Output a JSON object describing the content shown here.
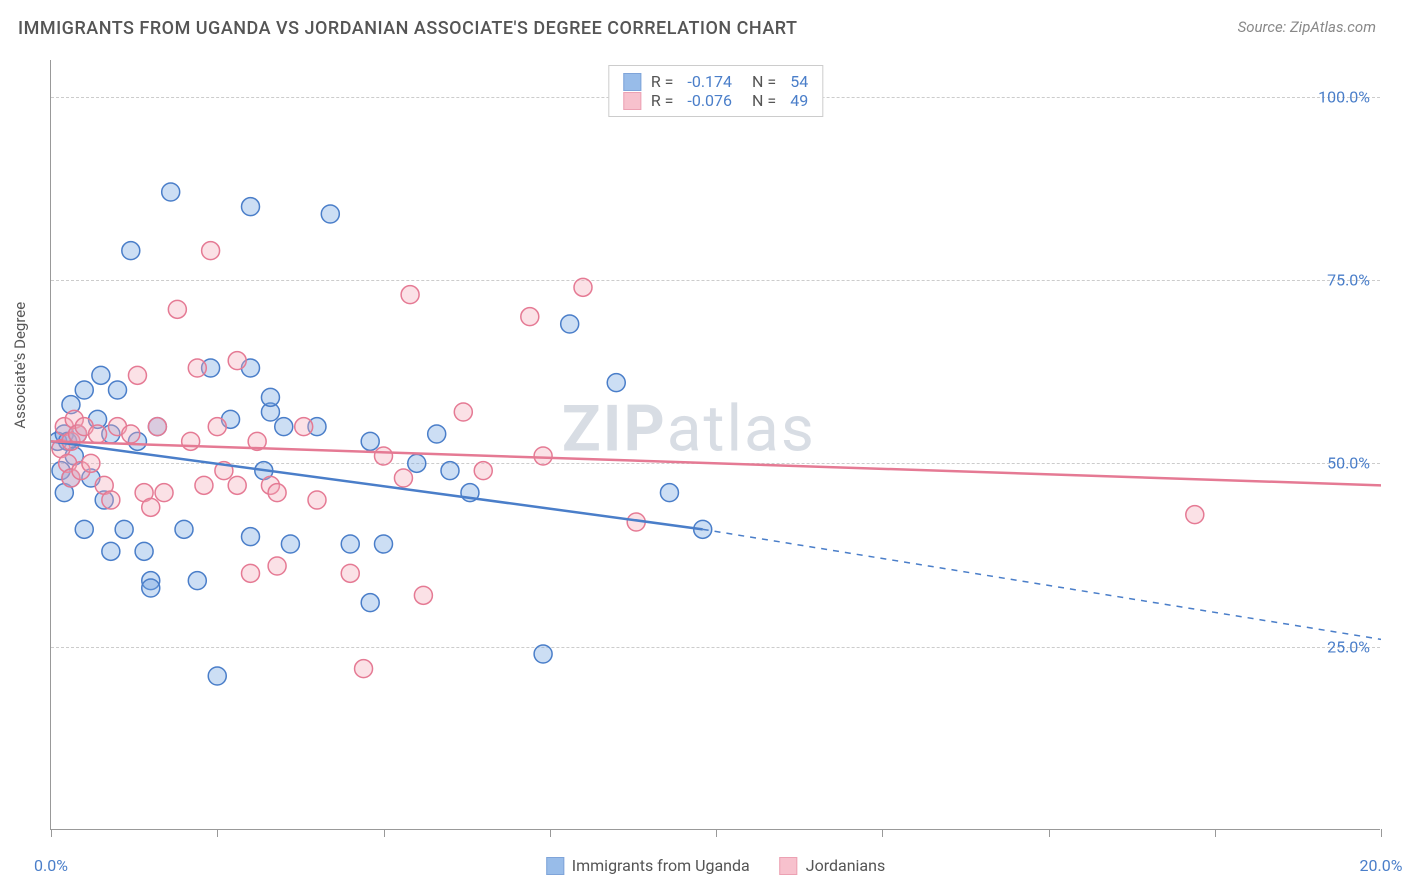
{
  "title": "IMMIGRANTS FROM UGANDA VS JORDANIAN ASSOCIATE'S DEGREE CORRELATION CHART",
  "source": "Source: ZipAtlas.com",
  "watermark_bold": "ZIP",
  "watermark_light": "atlas",
  "chart": {
    "type": "scatter",
    "y_label": "Associate's Degree",
    "xlim": [
      0,
      20
    ],
    "ylim": [
      0,
      105
    ],
    "x_ticks": [
      0,
      2.5,
      5.0,
      7.5,
      10,
      12.5,
      15,
      17.5,
      20
    ],
    "x_tick_labels": {
      "0": "0.0%",
      "20": "20.0%"
    },
    "y_ticks": [
      25,
      50,
      75,
      100
    ],
    "y_tick_labels": {
      "25": "25.0%",
      "50": "50.0%",
      "75": "75.0%",
      "100": "100.0%"
    },
    "background_color": "#ffffff",
    "grid_color": "#cccccc",
    "axis_color": "#999999",
    "tick_label_color": "#4a7ec9",
    "marker_radius": 9,
    "marker_fill_opacity": 0.35,
    "series": [
      {
        "name": "Immigrants from Uganda",
        "color": "#6da0e0",
        "stroke": "#4a7ec9",
        "r_value": "-0.174",
        "n_value": "54",
        "trend": {
          "x1": 0,
          "y1": 53,
          "x2": 9.8,
          "y2": 41,
          "dash_x2": 20,
          "dash_y2": 26
        },
        "points": [
          [
            0.1,
            53
          ],
          [
            0.15,
            49
          ],
          [
            0.2,
            54
          ],
          [
            0.2,
            46
          ],
          [
            0.25,
            53
          ],
          [
            0.3,
            48
          ],
          [
            0.3,
            58
          ],
          [
            0.35,
            51
          ],
          [
            0.4,
            54
          ],
          [
            0.5,
            60
          ],
          [
            0.5,
            41
          ],
          [
            0.6,
            48
          ],
          [
            0.7,
            56
          ],
          [
            0.75,
            62
          ],
          [
            0.8,
            45
          ],
          [
            0.9,
            54
          ],
          [
            0.9,
            38
          ],
          [
            1.0,
            60
          ],
          [
            1.1,
            41
          ],
          [
            1.2,
            79
          ],
          [
            1.3,
            53
          ],
          [
            1.4,
            38
          ],
          [
            1.5,
            34
          ],
          [
            1.5,
            33
          ],
          [
            1.6,
            55
          ],
          [
            1.8,
            87
          ],
          [
            2.0,
            41
          ],
          [
            2.2,
            34
          ],
          [
            2.4,
            63
          ],
          [
            2.5,
            21
          ],
          [
            2.7,
            56
          ],
          [
            3.0,
            85
          ],
          [
            3.0,
            63
          ],
          [
            3.0,
            40
          ],
          [
            3.2,
            49
          ],
          [
            3.3,
            57
          ],
          [
            3.3,
            59
          ],
          [
            3.5,
            55
          ],
          [
            3.6,
            39
          ],
          [
            4.0,
            55
          ],
          [
            4.2,
            84
          ],
          [
            4.5,
            39
          ],
          [
            4.8,
            53
          ],
          [
            4.8,
            31
          ],
          [
            5.0,
            39
          ],
          [
            5.5,
            50
          ],
          [
            5.8,
            54
          ],
          [
            6.0,
            49
          ],
          [
            6.3,
            46
          ],
          [
            7.4,
            24
          ],
          [
            7.8,
            69
          ],
          [
            8.5,
            61
          ],
          [
            9.3,
            46
          ],
          [
            9.8,
            41
          ]
        ]
      },
      {
        "name": "Jordanians",
        "color": "#f4a8b8",
        "stroke": "#e57a94",
        "r_value": "-0.076",
        "n_value": "49",
        "trend": {
          "x1": 0,
          "y1": 53,
          "x2": 20,
          "y2": 47
        },
        "points": [
          [
            0.15,
            52
          ],
          [
            0.2,
            55
          ],
          [
            0.25,
            50
          ],
          [
            0.3,
            48
          ],
          [
            0.3,
            53
          ],
          [
            0.35,
            56
          ],
          [
            0.4,
            54
          ],
          [
            0.45,
            49
          ],
          [
            0.5,
            55
          ],
          [
            0.6,
            50
          ],
          [
            0.7,
            54
          ],
          [
            0.8,
            47
          ],
          [
            0.9,
            45
          ],
          [
            1.0,
            55
          ],
          [
            1.2,
            54
          ],
          [
            1.3,
            62
          ],
          [
            1.4,
            46
          ],
          [
            1.5,
            44
          ],
          [
            1.6,
            55
          ],
          [
            1.7,
            46
          ],
          [
            1.9,
            71
          ],
          [
            2.1,
            53
          ],
          [
            2.2,
            63
          ],
          [
            2.3,
            47
          ],
          [
            2.4,
            79
          ],
          [
            2.5,
            55
          ],
          [
            2.8,
            64
          ],
          [
            2.8,
            47
          ],
          [
            3.0,
            35
          ],
          [
            3.1,
            53
          ],
          [
            3.3,
            47
          ],
          [
            3.4,
            46
          ],
          [
            3.4,
            36
          ],
          [
            3.8,
            55
          ],
          [
            4.0,
            45
          ],
          [
            4.5,
            35
          ],
          [
            4.7,
            22
          ],
          [
            5.0,
            51
          ],
          [
            5.3,
            48
          ],
          [
            5.4,
            73
          ],
          [
            5.6,
            32
          ],
          [
            6.2,
            57
          ],
          [
            6.5,
            49
          ],
          [
            7.2,
            70
          ],
          [
            7.4,
            51
          ],
          [
            8.0,
            74
          ],
          [
            8.8,
            42
          ],
          [
            17.2,
            43
          ],
          [
            2.6,
            49
          ]
        ]
      }
    ]
  }
}
